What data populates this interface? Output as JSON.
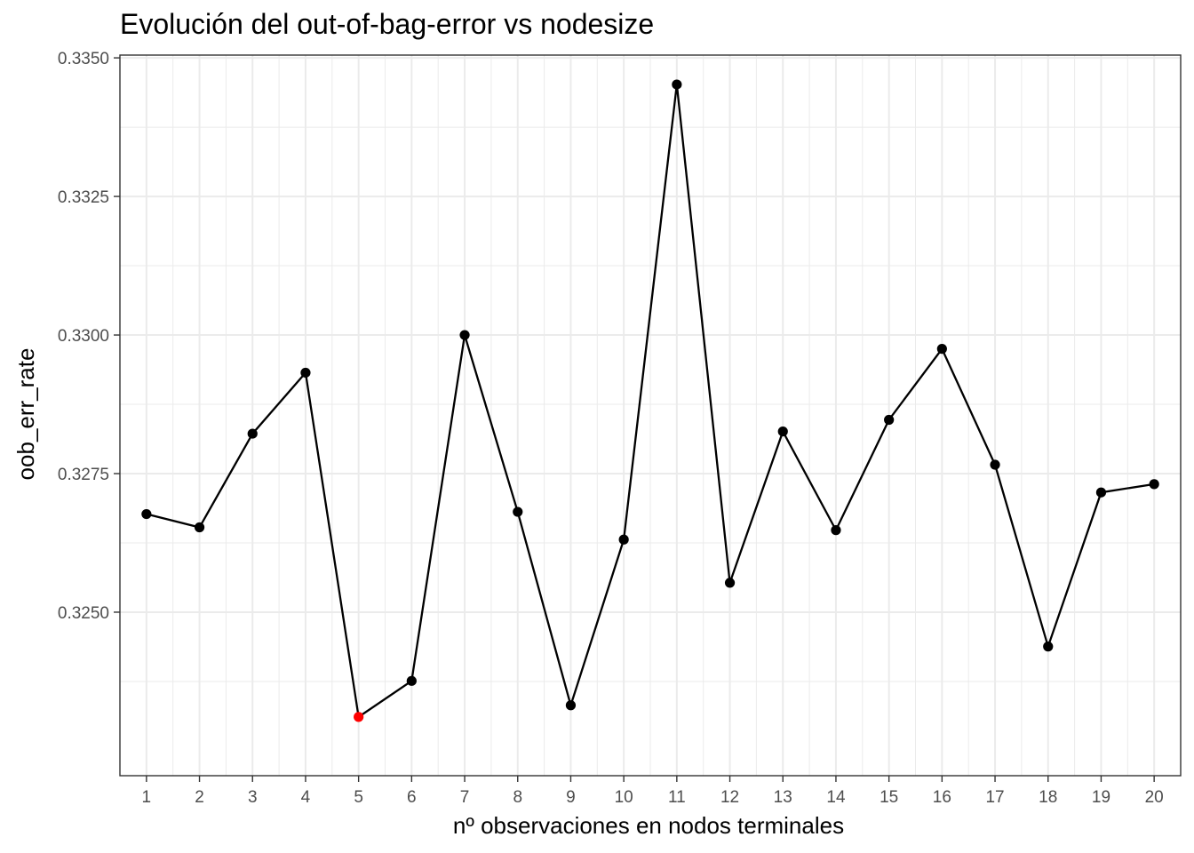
{
  "chart_data": {
    "type": "line",
    "title": "Evolución del out-of-bag-error vs nodesize",
    "xlabel": "nº observaciones en nodos terminales",
    "ylabel": "oob_err_rate",
    "x": [
      1,
      2,
      3,
      4,
      5,
      6,
      7,
      8,
      9,
      10,
      11,
      12,
      13,
      14,
      15,
      16,
      17,
      18,
      19,
      20
    ],
    "y": [
      0.32677,
      0.32653,
      0.32822,
      0.32932,
      0.32311,
      0.32376,
      0.33,
      0.32681,
      0.32332,
      0.32631,
      0.33452,
      0.32553,
      0.32826,
      0.32648,
      0.32847,
      0.32975,
      0.32766,
      0.32438,
      0.32716,
      0.32731
    ],
    "highlight": {
      "x": 5,
      "color": "#ff0000"
    },
    "point_color": "#000000",
    "line_color": "#000000",
    "xlim": [
      0.5,
      20.5
    ],
    "ylim": [
      0.32205,
      0.33505
    ],
    "x_ticks": [
      "1",
      "2",
      "3",
      "4",
      "5",
      "6",
      "7",
      "8",
      "9",
      "10",
      "11",
      "12",
      "13",
      "14",
      "15",
      "16",
      "17",
      "18",
      "19",
      "20"
    ],
    "y_ticks": [
      {
        "value": 0.325,
        "label": "0.3250"
      },
      {
        "value": 0.3275,
        "label": "0.3275"
      },
      {
        "value": 0.33,
        "label": "0.3300"
      },
      {
        "value": 0.3325,
        "label": "0.3325"
      },
      {
        "value": 0.335,
        "label": "0.3350"
      }
    ],
    "grid": true,
    "legend": "none"
  }
}
